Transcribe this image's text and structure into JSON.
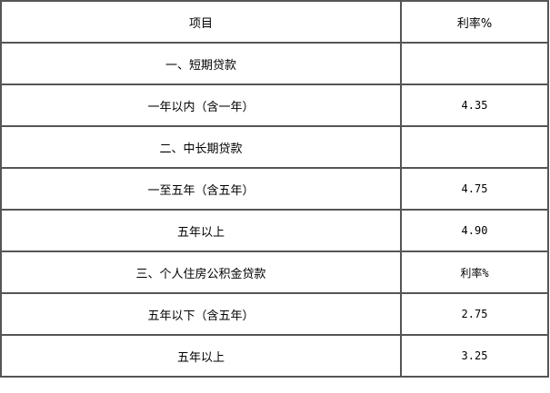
{
  "header": {
    "item": "项目",
    "rate": "利率%"
  },
  "rows": [
    {
      "item": "一、短期贷款",
      "rate": ""
    },
    {
      "item": "一年以内（含一年）",
      "rate": "4.35"
    },
    {
      "item": "二、中长期贷款",
      "rate": ""
    },
    {
      "item": "一至五年（含五年）",
      "rate": "4.75"
    },
    {
      "item": "五年以上",
      "rate": "4.90"
    },
    {
      "item": "三、个人住房公积金贷款",
      "rate": "利率%"
    },
    {
      "item": "五年以下（含五年）",
      "rate": "2.75"
    },
    {
      "item": "五年以上",
      "rate": "3.25"
    }
  ]
}
